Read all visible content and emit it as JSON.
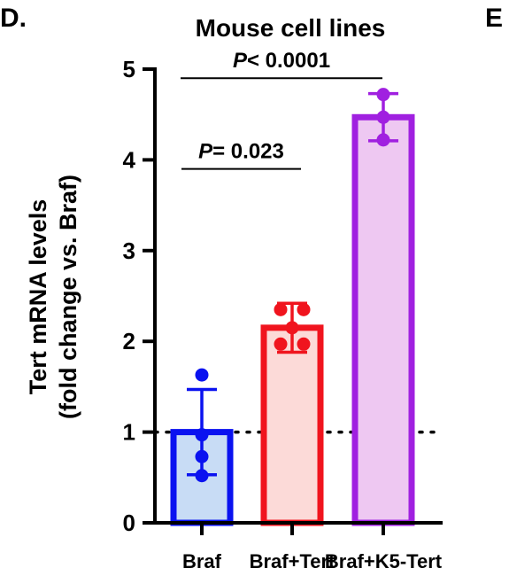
{
  "panel_label": "D.",
  "next_panel_label": "E",
  "chart_data": {
    "type": "bar",
    "title": "Mouse cell lines",
    "ylabel_line1": "Tert mRNA levels",
    "ylabel_line2": "(fold change vs.  Braf)",
    "xlabel": "",
    "ylim": [
      0,
      5
    ],
    "yticks": [
      0,
      1,
      2,
      3,
      4,
      5
    ],
    "reference_line": 1,
    "categories": [
      "Braf",
      "Braf+Tert",
      "Braf+K5-Tert"
    ],
    "means": [
      1.0,
      2.15,
      4.47
    ],
    "sd": [
      0.47,
      0.27,
      0.26
    ],
    "points": [
      [
        1.63,
        0.97,
        0.73,
        0.52
      ],
      [
        2.35,
        2.35,
        2.15,
        1.97,
        1.97
      ],
      [
        4.72,
        4.47,
        4.22
      ]
    ],
    "colors": {
      "edge": [
        "#0a12f0",
        "#f0141e",
        "#a020e0"
      ],
      "fill": [
        "#c8dcf5",
        "#fcdad8",
        "#eec8f2"
      ]
    },
    "annotations": [
      {
        "from": 0,
        "to": 1,
        "y": 3.9,
        "prefix": "P",
        "text": "= 0.023"
      },
      {
        "from": 0,
        "to": 2,
        "y": 4.9,
        "prefix": "P",
        "text": "< 0.0001"
      }
    ]
  }
}
